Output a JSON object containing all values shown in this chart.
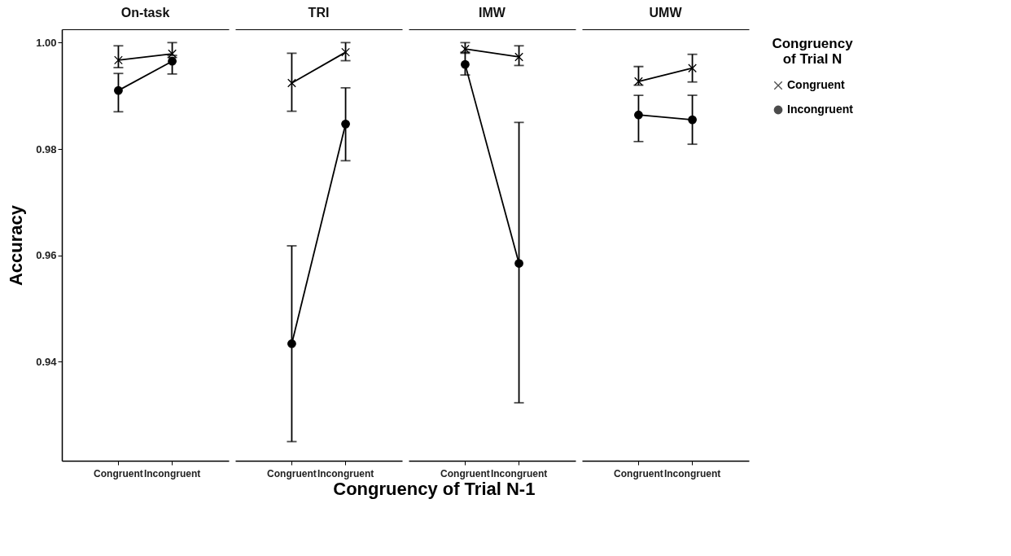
{
  "chart_data": [
    {
      "type": "line",
      "title": "On-task",
      "xlabel": "Congruency of Trial N-1",
      "ylabel": "Accuracy",
      "legend_title": "Congruency of Trial N",
      "legend": "right",
      "categories": [
        "Congruent",
        "Incongruent"
      ],
      "ylim": [
        0.9214,
        1.0025
      ],
      "yticks": [
        0.94,
        0.96,
        0.98,
        {
          "value": 1,
          "label": "1.00"
        }
      ],
      "grid": false,
      "series": [
        {
          "name": "Congruent",
          "color": "#000000",
          "marker": "cross",
          "values": [
            0.9967,
            0.9979
          ],
          "errors": [
            [
              0.9953,
              0.9994
            ],
            [
              0.9976,
              1.0
            ]
          ]
        },
        {
          "name": "Incongruent",
          "color": "#000000",
          "marker": "circle",
          "values": [
            0.991,
            0.9965
          ],
          "errors": [
            [
              0.987,
              0.9942
            ],
            [
              0.9941,
              0.9972
            ]
          ]
        }
      ]
    },
    {
      "type": "line",
      "title": "TRI",
      "categories": [
        "Congruent",
        "Incongruent"
      ],
      "ylim": [
        0.9214,
        1.0025
      ],
      "tick_labels": "x",
      "grid": false,
      "series": [
        {
          "name": "Congruent",
          "color": "#000000",
          "marker": "cross",
          "values": [
            0.9924,
            0.9982
          ],
          "errors": [
            [
              0.9871,
              0.998
            ],
            [
              0.9966,
              1.0
            ]
          ]
        },
        {
          "name": "Incongruent",
          "color": "#000000",
          "marker": "circle",
          "values": [
            0.9434,
            0.9847
          ],
          "errors": [
            [
              0.925,
              0.9618
            ],
            [
              0.9778,
              0.9915
            ]
          ]
        }
      ]
    },
    {
      "type": "line",
      "title": "IMW",
      "categories": [
        "Congruent",
        "Incongruent"
      ],
      "ylim": [
        0.9214,
        1.0025
      ],
      "tick_labels": "x",
      "grid": false,
      "series": [
        {
          "name": "Congruent",
          "color": "#000000",
          "marker": "cross",
          "values": [
            0.9988,
            0.9973
          ],
          "errors": [
            [
              0.998,
              1.0
            ],
            [
              0.9957,
              0.9994
            ]
          ]
        },
        {
          "name": "Incongruent",
          "color": "#000000",
          "marker": "circle",
          "values": [
            0.9959,
            0.9585
          ],
          "errors": [
            [
              0.9939,
              0.9982
            ],
            [
              0.9323,
              0.985
            ]
          ]
        }
      ]
    },
    {
      "type": "line",
      "title": "UMW",
      "categories": [
        "Congruent",
        "Incongruent"
      ],
      "ylim": [
        0.9214,
        1.0025
      ],
      "tick_labels": "x",
      "grid": false,
      "series": [
        {
          "name": "Congruent",
          "color": "#000000",
          "marker": "cross",
          "values": [
            0.9927,
            0.9952
          ],
          "errors": [
            [
              0.992,
              0.9955
            ],
            [
              0.9926,
              0.9978
            ]
          ]
        },
        {
          "name": "Incongruent",
          "color": "#000000",
          "marker": "circle",
          "values": [
            0.9864,
            0.9855
          ],
          "errors": [
            [
              0.9814,
              0.9901
            ],
            [
              0.9809,
              0.9901
            ]
          ]
        }
      ]
    }
  ]
}
